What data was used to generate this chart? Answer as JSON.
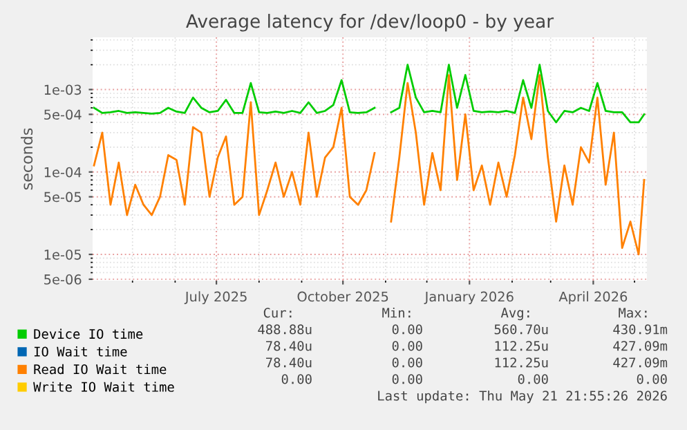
{
  "chart_data": {
    "type": "line",
    "title": "Average latency for /dev/loop0 - by year",
    "ylabel": "seconds",
    "x": [
      "2025-04-03",
      "2025-04-09",
      "2025-04-15",
      "2025-04-21",
      "2025-04-27",
      "2025-05-03",
      "2025-05-09",
      "2025-05-15",
      "2025-05-21",
      "2025-05-27",
      "2025-06-02",
      "2025-06-08",
      "2025-06-14",
      "2025-06-20",
      "2025-06-26",
      "2025-07-02",
      "2025-07-08",
      "2025-07-14",
      "2025-07-20",
      "2025-07-26",
      "2025-08-01",
      "2025-08-07",
      "2025-08-13",
      "2025-08-19",
      "2025-08-25",
      "2025-08-31",
      "2025-09-06",
      "2025-09-12",
      "2025-09-18",
      "2025-09-24",
      "2025-09-30",
      "2025-10-06",
      "2025-10-12",
      "2025-10-18",
      "2025-10-24",
      "2025-10-30",
      "2025-11-05",
      "2025-11-11",
      "2025-11-17",
      "2025-11-23",
      "2025-11-29",
      "2025-12-05",
      "2025-12-11",
      "2025-12-17",
      "2025-12-23",
      "2025-12-29",
      "2026-01-04",
      "2026-01-10",
      "2026-01-16",
      "2026-01-22",
      "2026-01-28",
      "2026-02-03",
      "2026-02-09",
      "2026-02-15",
      "2026-02-21",
      "2026-02-27",
      "2026-03-05",
      "2026-03-11",
      "2026-03-17",
      "2026-03-23",
      "2026-03-29",
      "2026-04-04",
      "2026-04-10",
      "2026-04-16",
      "2026-04-22",
      "2026-04-28",
      "2026-05-04",
      "2026-05-08"
    ],
    "series": [
      {
        "name": "Device IO time",
        "color": "#00cc00",
        "values": [
          0.0006,
          0.00052,
          0.00053,
          0.00055,
          0.00052,
          0.00053,
          0.00052,
          0.00051,
          0.00052,
          0.0006,
          0.00054,
          0.00052,
          0.0008,
          0.0006,
          0.00053,
          0.00055,
          0.00075,
          0.00052,
          0.00052,
          0.0012,
          0.00053,
          0.00052,
          0.00054,
          0.00052,
          0.00055,
          0.00052,
          0.0007,
          0.00052,
          0.00055,
          0.00065,
          0.0013,
          0.00053,
          0.00052,
          0.00053,
          0.0006,
          null,
          0.00053,
          0.0006,
          0.002,
          0.0008,
          0.00053,
          0.00055,
          0.00053,
          0.002,
          0.0006,
          0.0015,
          0.00055,
          0.00053,
          0.00054,
          0.00053,
          0.00055,
          0.00052,
          0.0013,
          0.0006,
          0.002,
          0.00055,
          0.0004,
          0.00055,
          0.00053,
          0.0006,
          0.00055,
          0.0012,
          0.00055,
          0.00053,
          0.00053,
          0.0004,
          0.0004,
          0.0005
        ]
      },
      {
        "name": "IO Wait time",
        "color": "#0066b3",
        "values": [
          null,
          null,
          null,
          null,
          null,
          null,
          null,
          null,
          null,
          null,
          null,
          null,
          null,
          null,
          null,
          null,
          null,
          null,
          null,
          null,
          null,
          null,
          null,
          null,
          null,
          null,
          null,
          null,
          null,
          null,
          null,
          null,
          null,
          null,
          null,
          null,
          null,
          null,
          null,
          null,
          null,
          null,
          null,
          null,
          null,
          null,
          null,
          null,
          null,
          null,
          null,
          null,
          null,
          null,
          null,
          null,
          null,
          null,
          null,
          null,
          null,
          null,
          null,
          null,
          null,
          null,
          null,
          null
        ]
      },
      {
        "name": "Read IO Wait time",
        "color": "#ff8000",
        "values": [
          0.00012,
          0.0003,
          4e-05,
          0.00013,
          3e-05,
          7e-05,
          4e-05,
          3e-05,
          5e-05,
          0.00016,
          0.00014,
          4e-05,
          0.00035,
          0.0003,
          5e-05,
          0.00015,
          0.00027,
          4e-05,
          5e-05,
          0.0007,
          3e-05,
          6e-05,
          0.00013,
          5e-05,
          0.0001,
          4e-05,
          0.0003,
          5e-05,
          0.00015,
          0.0002,
          0.0006,
          5e-05,
          4e-05,
          6e-05,
          0.00017,
          null,
          2.5e-05,
          0.00015,
          0.0012,
          0.0003,
          4e-05,
          0.00017,
          6e-05,
          0.0015,
          8e-05,
          0.0005,
          6e-05,
          0.00012,
          4e-05,
          0.00013,
          5e-05,
          0.00016,
          0.0008,
          0.00025,
          0.0015,
          0.00015,
          2.5e-05,
          0.00012,
          4e-05,
          0.0002,
          0.00013,
          0.0008,
          7e-05,
          0.0003,
          1.2e-05,
          2.5e-05,
          1e-05,
          8e-05
        ]
      },
      {
        "name": "Write IO Wait time",
        "color": "#ffcc00",
        "values": [
          null,
          null,
          null,
          null,
          null,
          null,
          null,
          null,
          null,
          null,
          null,
          null,
          null,
          null,
          null,
          null,
          null,
          null,
          null,
          null,
          null,
          null,
          null,
          null,
          null,
          null,
          null,
          null,
          null,
          null,
          null,
          null,
          null,
          null,
          null,
          null,
          null,
          null,
          null,
          null,
          null,
          null,
          null,
          null,
          null,
          null,
          null,
          null,
          null,
          null,
          null,
          null,
          null,
          null,
          null,
          null,
          null,
          null,
          null,
          null,
          null,
          null,
          null,
          null,
          null,
          null,
          null,
          null
        ]
      }
    ],
    "log": "y",
    "xlim": [
      "2025-04-02",
      "2026-05-10"
    ],
    "xticks": [
      {
        "value": "2025-07-01",
        "label": "July 2025"
      },
      {
        "value": "2025-10-01",
        "label": "October 2025"
      },
      {
        "value": "2026-01-01",
        "label": "January 2026"
      },
      {
        "value": "2026-04-01",
        "label": "April 2026"
      }
    ],
    "ylim": [
      4.8e-06,
      0.0043
    ],
    "yticks": [
      {
        "value": 5e-06,
        "label": "5e-06"
      },
      {
        "value": 1e-05,
        "label": "1e-05"
      },
      {
        "value": 5e-05,
        "label": "5e-05"
      },
      {
        "value": 0.0001,
        "label": "1e-04"
      },
      {
        "value": 0.0005,
        "label": "5e-04"
      },
      {
        "value": 0.001,
        "label": "1e-03"
      }
    ],
    "grid": true,
    "legend": "bottom",
    "annotations": [
      "Cur:",
      "Min:",
      "Avg:",
      "Max:",
      "488.88u",
      "0.00",
      "560.70u",
      "430.91m",
      "78.40u",
      "0.00",
      "112.25u",
      "427.09m",
      "78.40u",
      "0.00",
      "112.25u",
      "427.09m",
      "0.00",
      "0.00",
      "0.00",
      "0.00",
      "Last update: Thu May 21 21:55:26 2026"
    ]
  }
}
